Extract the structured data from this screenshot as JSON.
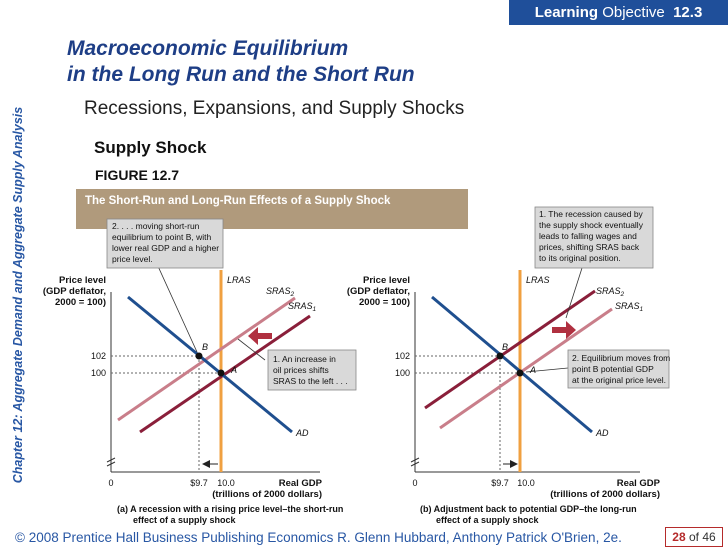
{
  "header": {
    "badge_bold": "Learning",
    "badge_text": "Objective",
    "badge_number": "12.3"
  },
  "sidebar_text": "Chapter 12:  Aggregate Demand and Aggregate Supply Analysis",
  "title_line1": "Macroeconomic Equilibrium",
  "title_line2": "in the Long Run and the Short Run",
  "subtitle": "Recessions, Expansions, and Supply Shocks",
  "section": "Supply Shock",
  "figure_label": "FIGURE 12.7",
  "figure_caption": "The Short-Run and Long-Run Effects of a Supply Shock",
  "panel_a": {
    "ylabel1": "Price level",
    "ylabel2": "(GDP deflator,",
    "ylabel3": "2000 = 100)",
    "xlabel1": "Real GDP",
    "xlabel2": "(trillions of 2000 dollars)",
    "lras": "LRAS",
    "sras2": "SRAS",
    "sras2_sub": "2",
    "sras1": "SRAS",
    "sras1_sub": "1",
    "ad": "AD",
    "point_a": "A",
    "point_b": "B",
    "y102": "102",
    "y100": "100",
    "x0": "0",
    "x97": "$9.7",
    "x100": "10.0",
    "callout_top": [
      "2. . . . moving short-run",
      "equilibrium to point B, with",
      "lower real GDP and a higher",
      "price level."
    ],
    "callout_mid": [
      "1.  An increase in",
      "oil prices shifts",
      "SRAS to the left . . ."
    ],
    "caption1": "(a) A recession with a rising price level–the short-run",
    "caption2": "effect of a supply shock"
  },
  "panel_b": {
    "ylabel1": "Price level",
    "ylabel2": "(GDP deflator,",
    "ylabel3": "2000 = 100)",
    "xlabel1": "Real GDP",
    "xlabel2": "(trillions of 2000 dollars)",
    "lras": "LRAS",
    "sras2": "SRAS",
    "sras2_sub": "2",
    "sras1": "SRAS",
    "sras1_sub": "1",
    "ad": "AD",
    "point_a": "A",
    "point_b": "B",
    "y102": "102",
    "y100": "100",
    "x0": "0",
    "x97": "$9.7",
    "x100": "10.0",
    "callout_top": [
      "1.  The recession caused by",
      "the supply shock eventually",
      "leads to falling wages and",
      "prices, shifting SRAS back",
      "to its original position."
    ],
    "callout_mid": [
      "2. Equilibrium moves from",
      "point B potential GDP",
      "at the original price level."
    ],
    "caption1": "(b) Adjustment back to potential GDP–the long-run",
    "caption2": "effect of a supply shock"
  },
  "footer": "© 2008 Prentice Hall Business Publishing   Economics  R. Glenn Hubbard, Anthony Patrick O'Brien, 2e.",
  "page": {
    "current": "28",
    "of": "of 46"
  },
  "colors": {
    "blue_title": "#1e3e86",
    "lras": "#f0a040",
    "sras2": "#c97e8a",
    "sras1": "#8a1f3a",
    "ad": "#1f4f8f",
    "arrow": "#b03040"
  }
}
